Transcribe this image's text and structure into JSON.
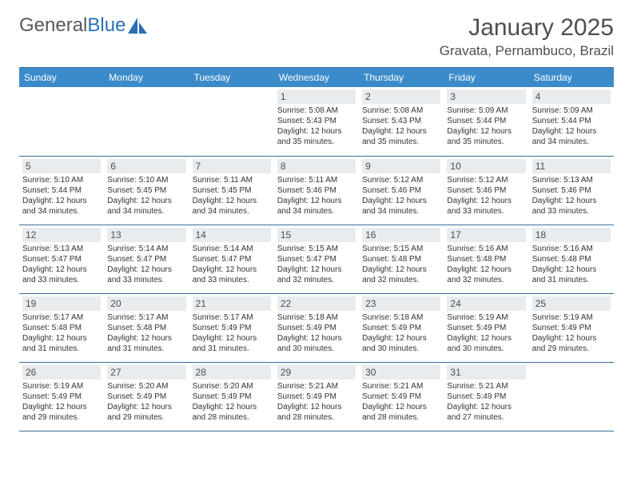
{
  "brand": {
    "part1": "General",
    "part2": "Blue"
  },
  "title": {
    "month": "January 2025",
    "location": "Gravata, Pernambuco, Brazil"
  },
  "colors": {
    "header_bg": "#3b8bca",
    "header_text": "#ffffff",
    "rule": "#3b6e9a",
    "daybar": "#e9ecee",
    "body_text": "#333333",
    "title_text": "#4a4f54",
    "brand_gray": "#555a5f",
    "brand_blue": "#2a6fb5"
  },
  "weekdays": [
    "Sunday",
    "Monday",
    "Tuesday",
    "Wednesday",
    "Thursday",
    "Friday",
    "Saturday"
  ],
  "first_weekday_index": 3,
  "days": [
    {
      "n": 1,
      "sunrise": "5:08 AM",
      "sunset": "5:43 PM",
      "daylight": "12 hours and 35 minutes."
    },
    {
      "n": 2,
      "sunrise": "5:08 AM",
      "sunset": "5:43 PM",
      "daylight": "12 hours and 35 minutes."
    },
    {
      "n": 3,
      "sunrise": "5:09 AM",
      "sunset": "5:44 PM",
      "daylight": "12 hours and 35 minutes."
    },
    {
      "n": 4,
      "sunrise": "5:09 AM",
      "sunset": "5:44 PM",
      "daylight": "12 hours and 34 minutes."
    },
    {
      "n": 5,
      "sunrise": "5:10 AM",
      "sunset": "5:44 PM",
      "daylight": "12 hours and 34 minutes."
    },
    {
      "n": 6,
      "sunrise": "5:10 AM",
      "sunset": "5:45 PM",
      "daylight": "12 hours and 34 minutes."
    },
    {
      "n": 7,
      "sunrise": "5:11 AM",
      "sunset": "5:45 PM",
      "daylight": "12 hours and 34 minutes."
    },
    {
      "n": 8,
      "sunrise": "5:11 AM",
      "sunset": "5:46 PM",
      "daylight": "12 hours and 34 minutes."
    },
    {
      "n": 9,
      "sunrise": "5:12 AM",
      "sunset": "5:46 PM",
      "daylight": "12 hours and 34 minutes."
    },
    {
      "n": 10,
      "sunrise": "5:12 AM",
      "sunset": "5:46 PM",
      "daylight": "12 hours and 33 minutes."
    },
    {
      "n": 11,
      "sunrise": "5:13 AM",
      "sunset": "5:46 PM",
      "daylight": "12 hours and 33 minutes."
    },
    {
      "n": 12,
      "sunrise": "5:13 AM",
      "sunset": "5:47 PM",
      "daylight": "12 hours and 33 minutes."
    },
    {
      "n": 13,
      "sunrise": "5:14 AM",
      "sunset": "5:47 PM",
      "daylight": "12 hours and 33 minutes."
    },
    {
      "n": 14,
      "sunrise": "5:14 AM",
      "sunset": "5:47 PM",
      "daylight": "12 hours and 33 minutes."
    },
    {
      "n": 15,
      "sunrise": "5:15 AM",
      "sunset": "5:47 PM",
      "daylight": "12 hours and 32 minutes."
    },
    {
      "n": 16,
      "sunrise": "5:15 AM",
      "sunset": "5:48 PM",
      "daylight": "12 hours and 32 minutes."
    },
    {
      "n": 17,
      "sunrise": "5:16 AM",
      "sunset": "5:48 PM",
      "daylight": "12 hours and 32 minutes."
    },
    {
      "n": 18,
      "sunrise": "5:16 AM",
      "sunset": "5:48 PM",
      "daylight": "12 hours and 31 minutes."
    },
    {
      "n": 19,
      "sunrise": "5:17 AM",
      "sunset": "5:48 PM",
      "daylight": "12 hours and 31 minutes."
    },
    {
      "n": 20,
      "sunrise": "5:17 AM",
      "sunset": "5:48 PM",
      "daylight": "12 hours and 31 minutes."
    },
    {
      "n": 21,
      "sunrise": "5:17 AM",
      "sunset": "5:49 PM",
      "daylight": "12 hours and 31 minutes."
    },
    {
      "n": 22,
      "sunrise": "5:18 AM",
      "sunset": "5:49 PM",
      "daylight": "12 hours and 30 minutes."
    },
    {
      "n": 23,
      "sunrise": "5:18 AM",
      "sunset": "5:49 PM",
      "daylight": "12 hours and 30 minutes."
    },
    {
      "n": 24,
      "sunrise": "5:19 AM",
      "sunset": "5:49 PM",
      "daylight": "12 hours and 30 minutes."
    },
    {
      "n": 25,
      "sunrise": "5:19 AM",
      "sunset": "5:49 PM",
      "daylight": "12 hours and 29 minutes."
    },
    {
      "n": 26,
      "sunrise": "5:19 AM",
      "sunset": "5:49 PM",
      "daylight": "12 hours and 29 minutes."
    },
    {
      "n": 27,
      "sunrise": "5:20 AM",
      "sunset": "5:49 PM",
      "daylight": "12 hours and 29 minutes."
    },
    {
      "n": 28,
      "sunrise": "5:20 AM",
      "sunset": "5:49 PM",
      "daylight": "12 hours and 28 minutes."
    },
    {
      "n": 29,
      "sunrise": "5:21 AM",
      "sunset": "5:49 PM",
      "daylight": "12 hours and 28 minutes."
    },
    {
      "n": 30,
      "sunrise": "5:21 AM",
      "sunset": "5:49 PM",
      "daylight": "12 hours and 28 minutes."
    },
    {
      "n": 31,
      "sunrise": "5:21 AM",
      "sunset": "5:49 PM",
      "daylight": "12 hours and 27 minutes."
    }
  ],
  "labels": {
    "sunrise": "Sunrise:",
    "sunset": "Sunset:",
    "daylight": "Daylight:"
  }
}
